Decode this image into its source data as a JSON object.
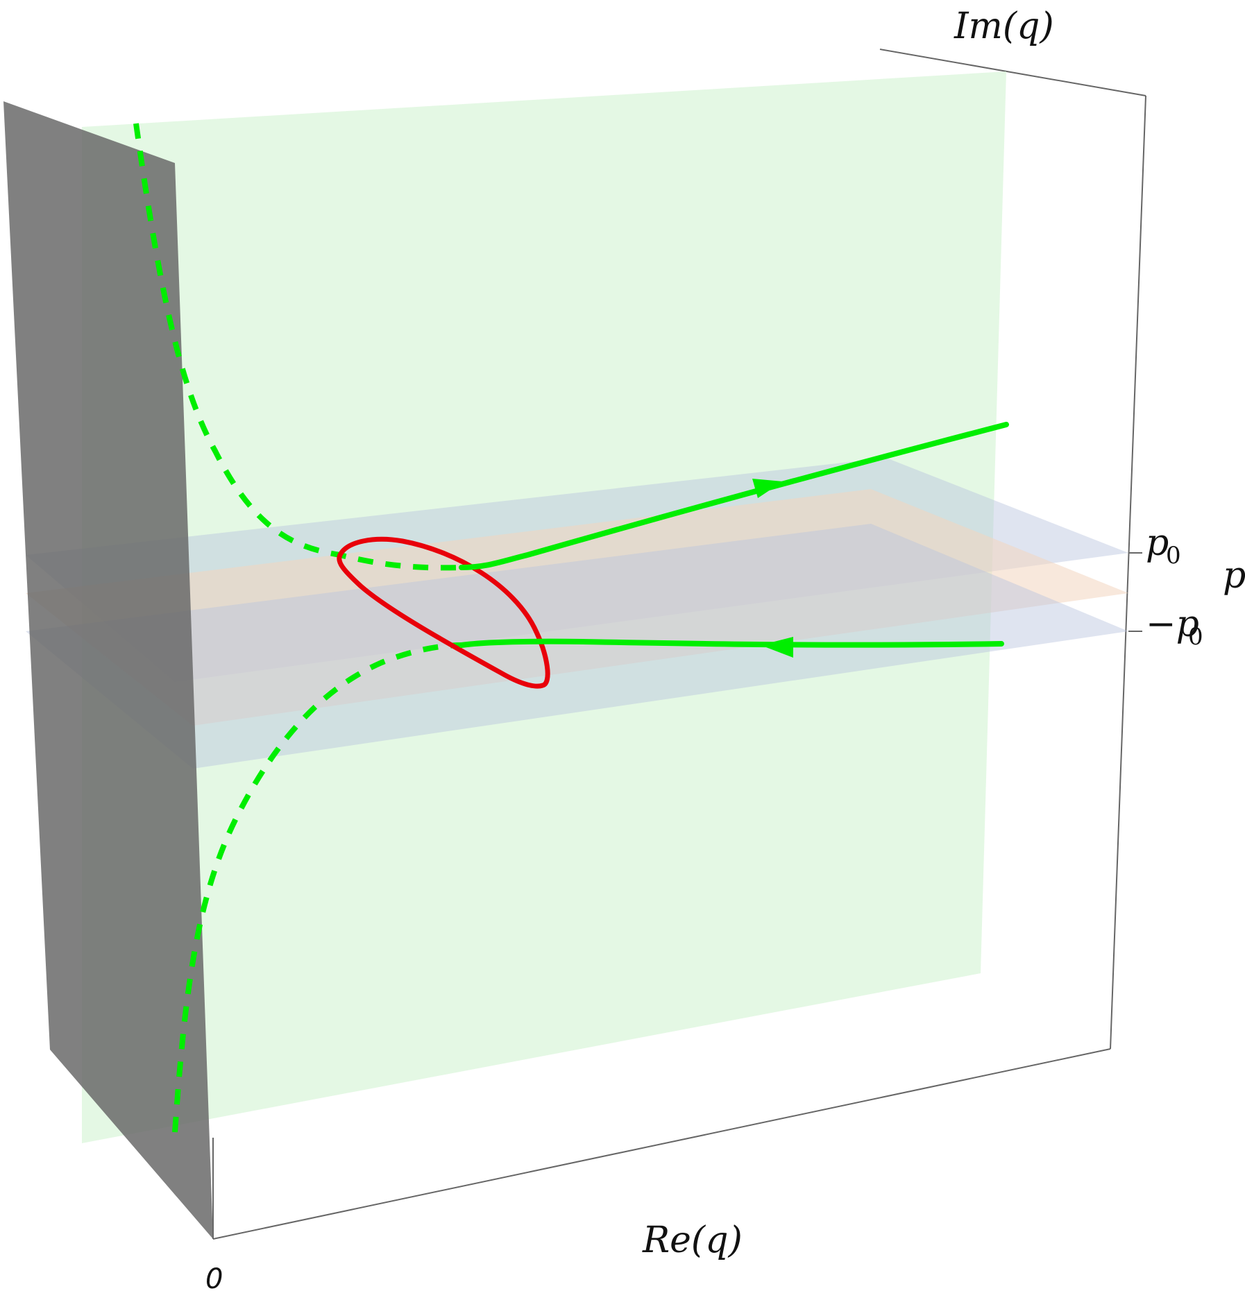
{
  "axes": {
    "re_label": "Re(q)",
    "im_label": "Im(q)",
    "p_label": "p",
    "origin_label": "0"
  },
  "planes": {
    "upper_label": "p",
    "upper_sub": "0",
    "lower_label": "−p",
    "lower_sub": "0"
  },
  "colors": {
    "green_sheet": "#d6f5d6",
    "gray_wall": "#666666",
    "blue_plane": "#b8c4de",
    "orange_plane": "#f3d6c0",
    "green_curve": "#00ee00",
    "red_curve": "#e8000a",
    "frame": "#666666"
  },
  "curves": {
    "solid": "green-solid-trajectory",
    "dashed": "green-dashed-trajectory",
    "loop": "red-loop"
  }
}
